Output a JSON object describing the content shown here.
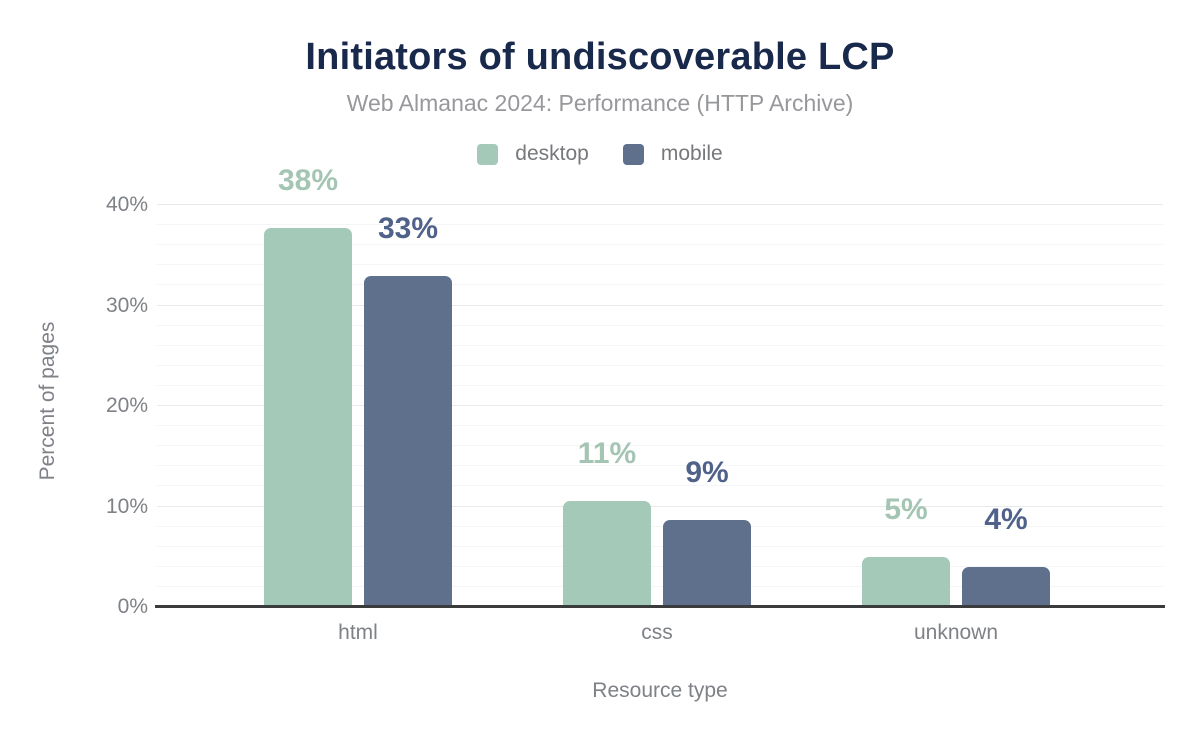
{
  "title": "Initiators of undiscoverable LCP",
  "subtitle": "Web Almanac 2024: Performance (HTTP Archive)",
  "legend": {
    "items": [
      {
        "label": "desktop",
        "color": "#a5c9b8"
      },
      {
        "label": "mobile",
        "color": "#5f708c"
      }
    ]
  },
  "chart_data": {
    "type": "bar",
    "title": "Initiators of undiscoverable LCP",
    "subtitle": "Web Almanac 2024: Performance (HTTP Archive)",
    "categories": [
      "html",
      "css",
      "unknown"
    ],
    "series": [
      {
        "name": "desktop",
        "color": "#a5c9b8",
        "label_color": "#a5c5b4",
        "values": [
          37.7,
          10.5,
          5.0
        ],
        "labels": [
          "38%",
          "11%",
          "5%"
        ]
      },
      {
        "name": "mobile",
        "color": "#5f708c",
        "label_color": "#50618a",
        "values": [
          32.9,
          8.7,
          4.0
        ],
        "labels": [
          "33%",
          "9%",
          "4%"
        ]
      }
    ],
    "xlabel": "Resource type",
    "ylabel": "Percent of pages",
    "ylim": [
      0,
      40
    ],
    "yticks": [
      "0%",
      "10%",
      "20%",
      "30%",
      "40%"
    ],
    "grid": "horizontal, minor every 2%, major every 10%",
    "legend_position": "top"
  },
  "colors": {
    "background": "#ffffff",
    "title": "#19294b",
    "subtitle": "#97989c",
    "legend_text": "#77787c",
    "axis_text": "#7e8186",
    "axis_line": "#3a3b3d",
    "grid_major": "#e8e9eb",
    "grid_minor": "#f4f5f6"
  }
}
